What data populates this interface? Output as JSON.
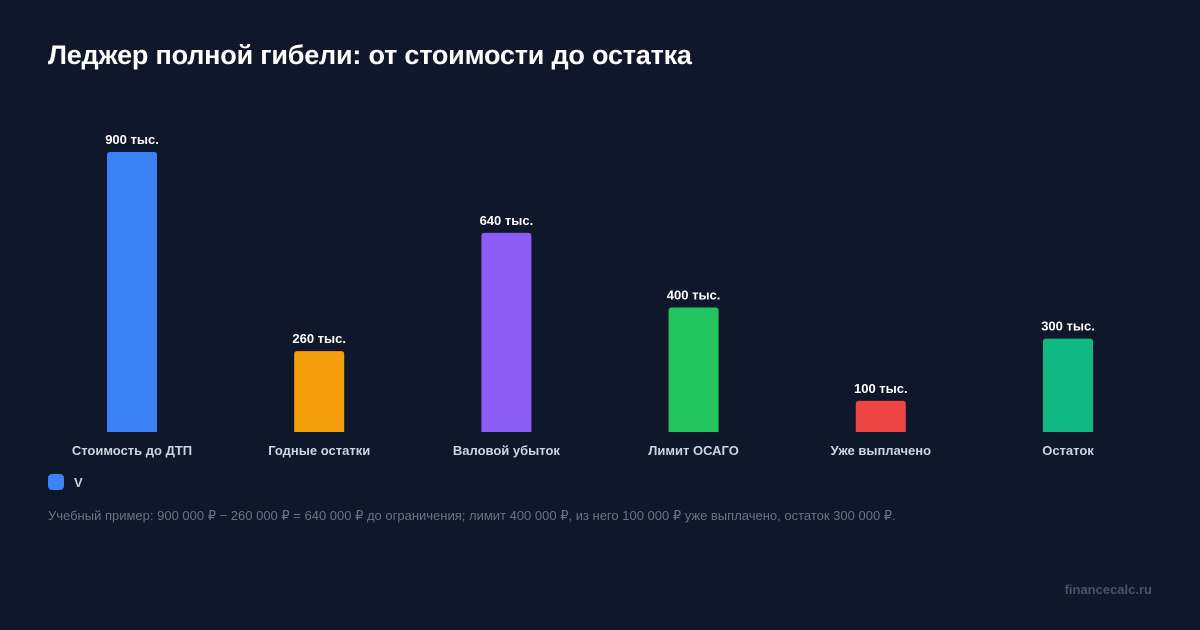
{
  "title": "Леджер полной гибели: от стоимости до остатка",
  "legend": {
    "label": "V",
    "color": "#3b82f6"
  },
  "note": "Учебный пример: 900 000 ₽ − 260 000 ₽ = 640 000 ₽ до ограничения; лимит 400 000 ₽, из него 100 000 ₽ уже выплачено, остаток 300 000 ₽.",
  "watermark": "financecalc.ru",
  "chart_data": {
    "type": "bar",
    "title": "Леджер полной гибели: от стоимости до остатка",
    "xlabel": "",
    "ylabel": "",
    "ylim": [
      0,
      900000
    ],
    "grid": false,
    "legend_position": "bottom-left",
    "categories": [
      "Стоимость до ДТП",
      "Годные остатки",
      "Валовой убыток",
      "Лимит ОСАГО",
      "Уже выплачено",
      "Остаток"
    ],
    "series": [
      {
        "name": "V",
        "values": [
          900000,
          260000,
          640000,
          400000,
          100000,
          300000
        ]
      }
    ],
    "data_labels": [
      "900 тыс.",
      "260 тыс.",
      "640 тыс.",
      "400 тыс.",
      "100 тыс.",
      "300 тыс."
    ],
    "colors": [
      "#3b82f6",
      "#f59e0b",
      "#8b5cf6",
      "#22c55e",
      "#ef4444",
      "#10b981"
    ]
  }
}
